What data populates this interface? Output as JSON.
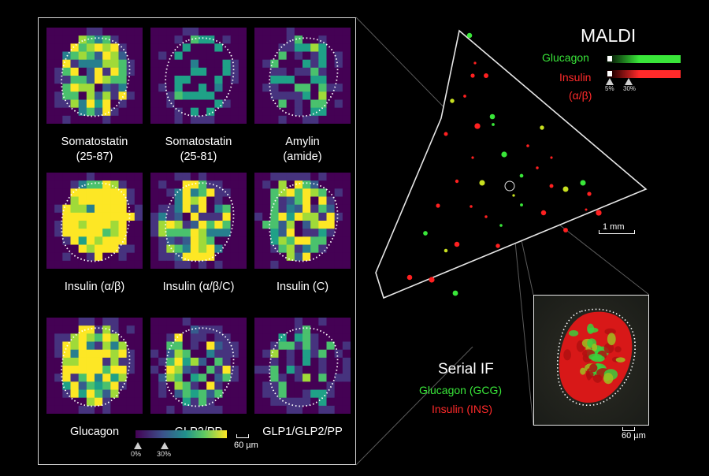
{
  "tiles": [
    {
      "label": "Somatostatin\n(25-87)",
      "density": 0.55
    },
    {
      "label": "Somatostatin\n(25-81)",
      "density": 0.25
    },
    {
      "label": "Amylin\n(amide)",
      "density": 0.32
    },
    {
      "label": "Insulin (α/β)",
      "density": 0.9
    },
    {
      "label": "Insulin (α/β/C)",
      "density": 0.55
    },
    {
      "label": "Insulin (C)",
      "density": 0.5
    },
    {
      "label": "Glucagon",
      "density": 0.7
    },
    {
      "label": "GLP2/PP",
      "density": 0.45
    },
    {
      "label": "GLP1/GLP2/PP",
      "density": 0.35
    }
  ],
  "colorbar": {
    "min_label": "0%",
    "max_label": "30%"
  },
  "grid_scale": "60 µm",
  "maldi": {
    "title": "MALDI",
    "glucagon_label": "Glucagon",
    "insulin_label": "Insulin",
    "insulin_sub": "(α/β)",
    "tick_low": "5%",
    "tick_high": "30%",
    "scale": "1 mm",
    "glucagon_color": "#39e639",
    "insulin_color": "#ff2a2a"
  },
  "serial_if": {
    "title": "Serial IF",
    "glucagon": "Glucagon (GCG)",
    "insulin": "Insulin (INS)",
    "scale": "60 µm"
  }
}
